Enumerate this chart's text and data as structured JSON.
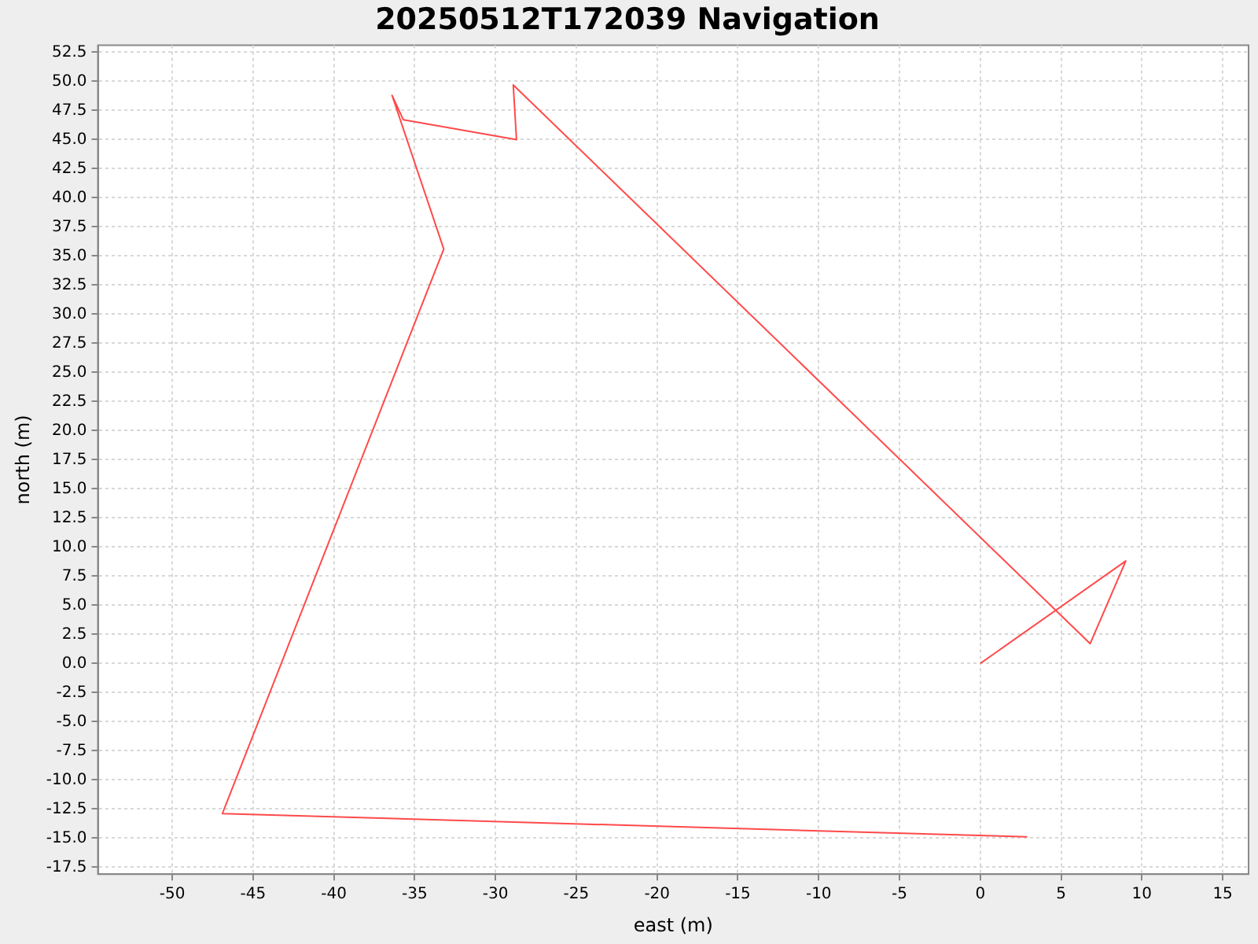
{
  "chart_data": {
    "type": "line",
    "title": "20250512T172039 Navigation",
    "xlabel": "east (m)",
    "ylabel": "north (m)",
    "series": [
      {
        "color": "#ff4a4a",
        "x": [
          0,
          9,
          6.8,
          -28.9,
          -28.7,
          -35.7,
          -36.4,
          -33.2,
          -46.9,
          2.9
        ],
        "values": [
          0,
          8.8,
          1.7,
          49.7,
          45,
          46.7,
          48.8,
          35.6,
          -12.9,
          -14.9
        ]
      }
    ],
    "xlim": [
      -54.6,
      16.6
    ],
    "ylim": [
      -18.1,
      53.1
    ],
    "xticks": [
      -50,
      -45,
      -40,
      -35,
      -30,
      -25,
      -20,
      -15,
      -10,
      -5,
      0,
      5,
      10,
      15
    ],
    "yticks": [
      -17.5,
      {
        "value": -15,
        "label": "-15.0"
      },
      -12.5,
      {
        "value": -10,
        "label": "-10.0"
      },
      -7.5,
      {
        "value": -5,
        "label": "-5.0"
      },
      -2.5,
      {
        "value": 0,
        "label": "0.0"
      },
      2.5,
      {
        "value": 5,
        "label": "5.0"
      },
      7.5,
      {
        "value": 10,
        "label": "10.0"
      },
      12.5,
      {
        "value": 15,
        "label": "15.0"
      },
      17.5,
      {
        "value": 20,
        "label": "20.0"
      },
      22.5,
      {
        "value": 25,
        "label": "25.0"
      },
      27.5,
      {
        "value": 30,
        "label": "30.0"
      },
      32.5,
      {
        "value": 35,
        "label": "35.0"
      },
      37.5,
      {
        "value": 40,
        "label": "40.0"
      },
      42.5,
      {
        "value": 45,
        "label": "45.0"
      },
      47.5,
      {
        "value": 50,
        "label": "50.0"
      },
      52.5
    ],
    "grid": true,
    "legend": false,
    "marker": "none",
    "line_style": "solid"
  }
}
